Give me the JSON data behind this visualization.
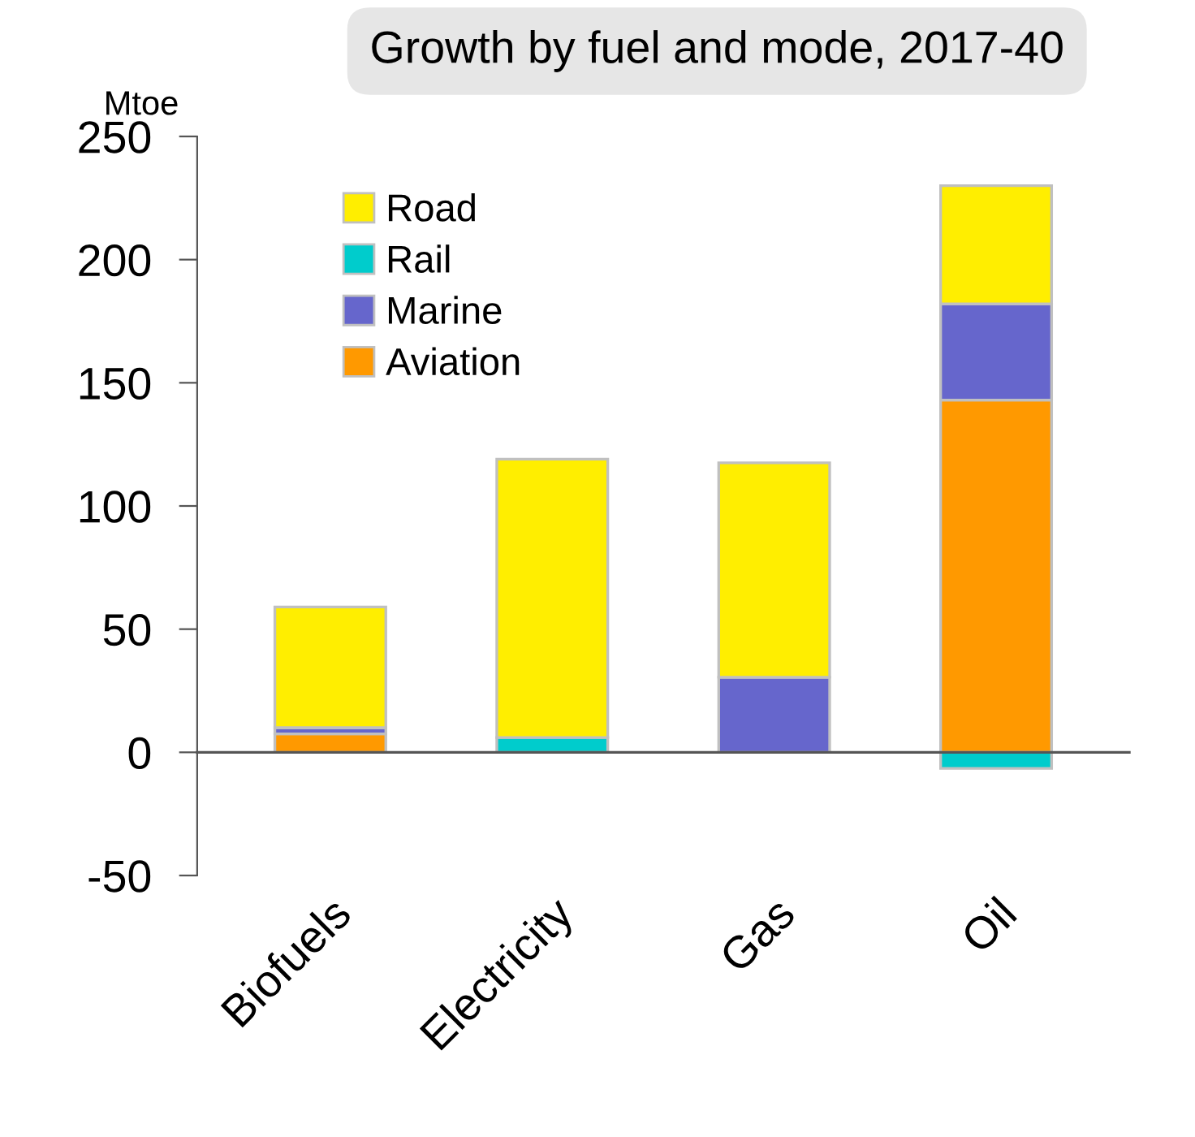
{
  "chart_data": {
    "type": "bar",
    "title": "Growth by fuel and mode, 2017-40",
    "ylabel": "Mtoe",
    "categories": [
      "Biofuels",
      "Electricity",
      "Gas",
      "Oil"
    ],
    "stacked": true,
    "series": [
      {
        "name": "Aviation",
        "color": "#ff9900",
        "values": [
          7.5,
          0,
          0,
          143
        ]
      },
      {
        "name": "Marine",
        "color": "#6666cc",
        "values": [
          2.5,
          0,
          30.5,
          39
        ]
      },
      {
        "name": "Rail",
        "color": "#00cccc",
        "values": [
          0,
          6,
          0,
          -6.5
        ]
      },
      {
        "name": "Road",
        "color": "#ffee00",
        "values": [
          49,
          113,
          87,
          48
        ]
      }
    ],
    "ylim": [
      -50,
      250
    ],
    "yticks": [
      -50,
      0,
      50,
      100,
      150,
      200,
      250
    ],
    "legend": "top left"
  }
}
